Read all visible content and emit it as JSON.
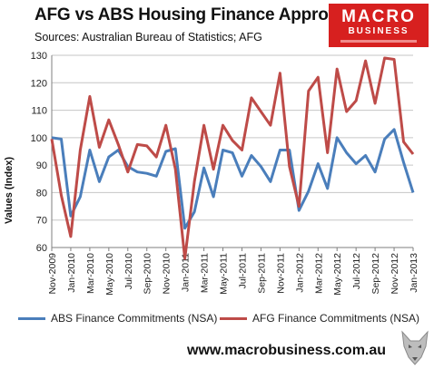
{
  "header": {
    "title": "AFG vs ABS Housing Finance Approvals",
    "subtitle": "Sources: Australian Bureau of Statistics; AFG"
  },
  "logo": {
    "line1": "MACRO",
    "line2": "BUSINESS"
  },
  "footer": {
    "url": "www.macrobusiness.com.au"
  },
  "colors": {
    "abs": "#4a7ebb",
    "afg": "#be4b48",
    "logo_bg": "#d7201f"
  },
  "chart_data": {
    "type": "line",
    "ylabel": "Values (Index)",
    "ylim": [
      60,
      130
    ],
    "yticks": [
      60,
      70,
      80,
      90,
      100,
      110,
      120,
      130
    ],
    "grid": "horizontal",
    "legend": "bottom",
    "tick_labels": [
      "Nov-2009",
      "Jan-2010",
      "Mar-2010",
      "May-2010",
      "Jul-2010",
      "Sep-2010",
      "Nov-2010",
      "Jan-2011",
      "Mar-2011",
      "May-2011",
      "Jul-2011",
      "Sep-2011",
      "Nov-2011",
      "Jan-2012",
      "Mar-2012",
      "May-2012",
      "Jul-2012",
      "Sep-2012",
      "Nov-2012",
      "Jan-2013"
    ],
    "x": [
      "Nov-2009",
      "Dec-2009",
      "Jan-2010",
      "Feb-2010",
      "Mar-2010",
      "Apr-2010",
      "May-2010",
      "Jun-2010",
      "Jul-2010",
      "Aug-2010",
      "Sep-2010",
      "Oct-2010",
      "Nov-2010",
      "Dec-2010",
      "Jan-2011",
      "Feb-2011",
      "Mar-2011",
      "Apr-2011",
      "May-2011",
      "Jun-2011",
      "Jul-2011",
      "Aug-2011",
      "Sep-2011",
      "Oct-2011",
      "Nov-2011",
      "Dec-2011",
      "Jan-2012",
      "Feb-2012",
      "Mar-2012",
      "Apr-2012",
      "May-2012",
      "Jun-2012",
      "Jul-2012",
      "Aug-2012",
      "Sep-2012",
      "Oct-2012",
      "Nov-2012",
      "Dec-2012",
      "Jan-2013"
    ],
    "series": [
      {
        "name": "ABS Finance Commitments (NSA)",
        "values": [
          100,
          99.5,
          71.5,
          78.5,
          95.5,
          84,
          93,
          95.5,
          89.5,
          87.5,
          87,
          86,
          95,
          96,
          67,
          73,
          89,
          78.5,
          95.5,
          94.5,
          86,
          93.5,
          89.5,
          84,
          95.5,
          95.5,
          73.5,
          80.5,
          90.5,
          81.5,
          100,
          94.5,
          90.5,
          93.5,
          87.5,
          99.5,
          103,
          91,
          80
        ]
      },
      {
        "name": "AFG Finance Commitments (NSA)",
        "values": [
          99.5,
          79,
          64,
          95.5,
          115,
          96.5,
          106.5,
          97.5,
          87.5,
          97.5,
          97,
          93,
          104.5,
          88.5,
          56,
          84,
          104.5,
          88.5,
          104.5,
          99,
          95.5,
          114.5,
          109.5,
          104.5,
          123.5,
          89.5,
          75,
          117,
          122,
          94.5,
          125,
          109.5,
          113.5,
          128,
          112.5,
          129,
          128.5,
          98.5,
          94
        ]
      }
    ]
  }
}
